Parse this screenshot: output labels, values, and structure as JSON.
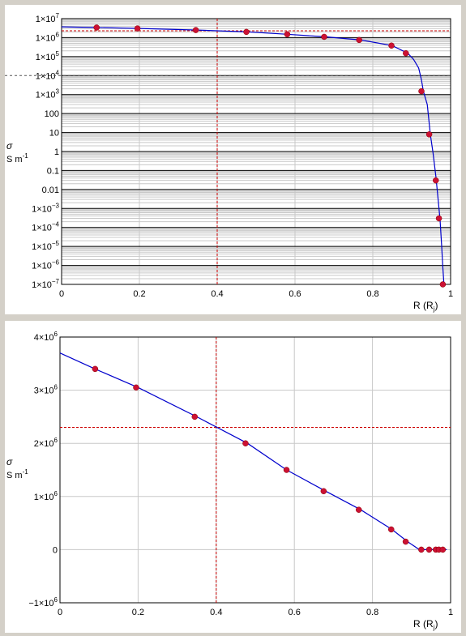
{
  "chart_data": [
    {
      "type": "line",
      "yscale": "log",
      "ylabel_symbol": "σ",
      "ylabel_unit": "S m",
      "ylabel_unit_exp": "-1",
      "xlabel_main": "R (R",
      "xlabel_sub": "j",
      "xlabel_end": ")",
      "xlim": [
        0,
        1
      ],
      "xticks": [
        "0",
        "0.2",
        "0.4",
        "0.6",
        "0.8",
        "1"
      ],
      "ylim": [
        1e-07,
        10000000.0
      ],
      "yticks": [
        {
          "v": 10000000.0,
          "text": "1×10",
          "exp": "7"
        },
        {
          "v": 1000000.0,
          "text": "1×10",
          "exp": "6"
        },
        {
          "v": 100000.0,
          "text": "1×10",
          "exp": "5"
        },
        {
          "v": 10000.0,
          "text": "1×10",
          "exp": "4"
        },
        {
          "v": 1000.0,
          "text": "1×10",
          "exp": "3"
        },
        {
          "v": 100,
          "text": "100",
          "exp": ""
        },
        {
          "v": 10,
          "text": "10",
          "exp": ""
        },
        {
          "v": 1,
          "text": "1",
          "exp": ""
        },
        {
          "v": 0.1,
          "text": "0.1",
          "exp": ""
        },
        {
          "v": 0.01,
          "text": "0.01",
          "exp": ""
        },
        {
          "v": 0.001,
          "text": "1×10",
          "exp": "−3"
        },
        {
          "v": 0.0001,
          "text": "1×10",
          "exp": "−4"
        },
        {
          "v": 1e-05,
          "text": "1×10",
          "exp": "−5"
        },
        {
          "v": 1e-06,
          "text": "1×10",
          "exp": "−6"
        },
        {
          "v": 1e-07,
          "text": "1×10",
          "exp": "−7"
        }
      ],
      "grid": true,
      "crosshair": {
        "x": 0.4,
        "y": 2300000.0
      },
      "guide_y": 10000.0,
      "line_color": "#0000cc",
      "marker_color": "#cc1133",
      "crosshair_color": "#cc0000",
      "curve": {
        "x": [
          0,
          0.09,
          0.2,
          0.35,
          0.48,
          0.58,
          0.68,
          0.77,
          0.85,
          0.89,
          0.905,
          0.918,
          0.925,
          0.93,
          0.94,
          0.948,
          0.955,
          0.962,
          0.968,
          0.973,
          0.977,
          0.98,
          0.983
        ],
        "y": [
          3700000.0,
          3400000.0,
          3050000.0,
          2500000.0,
          2000000.0,
          1500000.0,
          1100000.0,
          750000.0,
          380000.0,
          150000.0,
          70000.0,
          25000.0,
          6000,
          1500,
          300,
          8,
          0.8,
          0.05,
          0.003,
          0.00025,
          1e-05,
          8e-07,
          1e-07
        ]
      },
      "points": {
        "x": [
          0.09,
          0.195,
          0.345,
          0.475,
          0.58,
          0.675,
          0.765,
          0.848,
          0.885,
          0.925,
          0.945,
          0.962,
          0.97,
          0.98
        ],
        "y": [
          3400000.0,
          3050000.0,
          2500000.0,
          2000000.0,
          1500000.0,
          1100000.0,
          750000.0,
          380000.0,
          150000.0,
          1500,
          8,
          0.03,
          0.0003,
          1e-07
        ]
      }
    },
    {
      "type": "line",
      "yscale": "linear",
      "ylabel_symbol": "σ",
      "ylabel_unit": "S m",
      "ylabel_unit_exp": "-1",
      "xlabel_main": "R (R",
      "xlabel_sub": "j",
      "xlabel_end": ")",
      "xlim": [
        0,
        1
      ],
      "xticks": [
        "0",
        "0.2",
        "0.4",
        "0.6",
        "0.8",
        "1"
      ],
      "ylim": [
        -1000000.0,
        4000000.0
      ],
      "yticks": [
        {
          "v": 4000000.0,
          "text": "4×10",
          "exp": "6"
        },
        {
          "v": 3000000.0,
          "text": "3×10",
          "exp": "6"
        },
        {
          "v": 2000000.0,
          "text": "2×10",
          "exp": "6"
        },
        {
          "v": 1000000.0,
          "text": "1×10",
          "exp": "6"
        },
        {
          "v": 0,
          "text": "0",
          "exp": ""
        },
        {
          "v": -1000000.0,
          "text": "−1×10",
          "exp": "6"
        }
      ],
      "grid": true,
      "crosshair": {
        "x": 0.4,
        "y": 2300000.0
      },
      "line_color": "#0000cc",
      "marker_color": "#cc1133",
      "crosshair_color": "#cc0000",
      "curve": {
        "x": [
          0,
          0.09,
          0.2,
          0.35,
          0.48,
          0.58,
          0.68,
          0.77,
          0.85,
          0.89,
          0.92,
          0.99
        ],
        "y": [
          3700000.0,
          3400000.0,
          3050000.0,
          2500000.0,
          2000000.0,
          1500000.0,
          1100000.0,
          750000.0,
          380000.0,
          150000.0,
          0,
          0
        ]
      },
      "points": {
        "x": [
          0.09,
          0.195,
          0.345,
          0.475,
          0.58,
          0.675,
          0.765,
          0.848,
          0.885,
          0.925,
          0.945,
          0.962,
          0.97,
          0.98
        ],
        "y": [
          3400000.0,
          3050000.0,
          2500000.0,
          2000000.0,
          1500000.0,
          1100000.0,
          750000.0,
          380000.0,
          150000.0,
          0,
          0,
          0,
          0,
          0
        ]
      }
    }
  ]
}
